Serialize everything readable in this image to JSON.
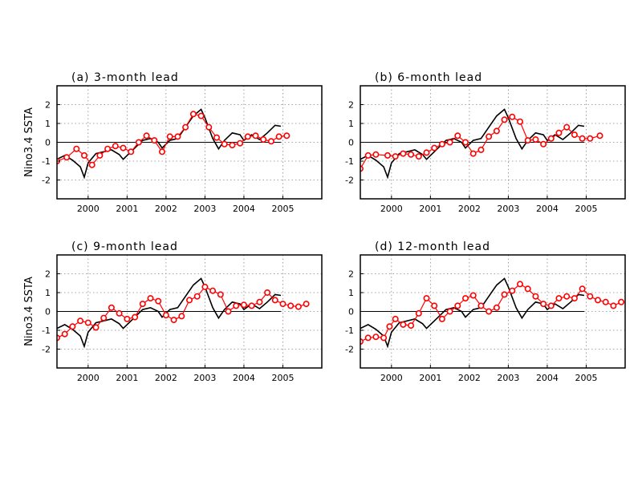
{
  "chart_data": [
    {
      "type": "line",
      "title": "(a) 3-month lead",
      "ylabel": "Nino3.4 SSTA",
      "xlim": [
        1999.2,
        2006.0
      ],
      "ylim": [
        -3,
        3
      ],
      "xticks": [
        2000,
        2001,
        2002,
        2003,
        2004,
        2005
      ],
      "xtick_labels": [
        "2000",
        "2001",
        "2002",
        "2003",
        "2004",
        "2005"
      ],
      "yticks": [
        -2,
        -1,
        0,
        1,
        2
      ],
      "ytick_labels": [
        "-2",
        "-1",
        "0",
        "1",
        "2"
      ],
      "grid": true,
      "zero_line": true,
      "series": [
        {
          "style": "line",
          "color": "#000000",
          "x": [
            1999.2,
            1999.4,
            1999.6,
            1999.8,
            1999.9,
            2000.0,
            2000.2,
            2000.4,
            2000.6,
            2000.8,
            2000.9,
            2001.0,
            2001.2,
            2001.4,
            2001.6,
            2001.8,
            2001.9,
            2002.1,
            2002.3,
            2002.5,
            2002.7,
            2002.9,
            2003.0,
            2003.2,
            2003.35,
            2003.5,
            2003.7,
            2003.9,
            2004.0,
            2004.2,
            2004.4,
            2004.6,
            2004.8,
            2004.95
          ],
          "y": [
            -0.9,
            -0.7,
            -0.95,
            -1.3,
            -1.85,
            -1.1,
            -0.6,
            -0.5,
            -0.4,
            -0.65,
            -0.9,
            -0.7,
            -0.3,
            0.1,
            0.2,
            0.0,
            -0.3,
            0.1,
            0.2,
            0.8,
            1.4,
            1.75,
            1.3,
            0.2,
            -0.35,
            0.1,
            0.5,
            0.4,
            0.1,
            0.4,
            0.15,
            0.5,
            0.9,
            0.85
          ]
        },
        {
          "style": "markers",
          "color": "#ff0000",
          "x": [
            1999.2,
            1999.45,
            1999.7,
            1999.9,
            2000.1,
            2000.3,
            2000.5,
            2000.7,
            2000.9,
            2001.1,
            2001.3,
            2001.5,
            2001.7,
            2001.9,
            2002.1,
            2002.3,
            2002.5,
            2002.7,
            2002.9,
            2003.1,
            2003.3,
            2003.5,
            2003.7,
            2003.9,
            2004.1,
            2004.3,
            2004.5,
            2004.7,
            2004.9,
            2005.1
          ],
          "y": [
            -1.0,
            -0.8,
            -0.35,
            -0.7,
            -1.2,
            -0.7,
            -0.35,
            -0.2,
            -0.3,
            -0.5,
            0.0,
            0.35,
            0.1,
            -0.5,
            0.3,
            0.3,
            0.8,
            1.5,
            1.4,
            0.8,
            0.25,
            -0.1,
            -0.15,
            -0.05,
            0.3,
            0.35,
            0.15,
            0.05,
            0.3,
            0.35
          ]
        }
      ]
    },
    {
      "type": "line",
      "title": "(b) 6-month lead",
      "xlim": [
        1999.2,
        2006.0
      ],
      "ylim": [
        -3,
        3
      ],
      "xticks": [
        2000,
        2001,
        2002,
        2003,
        2004,
        2005
      ],
      "xtick_labels": [
        "2000",
        "2001",
        "2002",
        "2003",
        "2004",
        "2005"
      ],
      "yticks": [
        -2,
        -1,
        0,
        1,
        2
      ],
      "ytick_labels": [
        "-2",
        "-1",
        "0",
        "1",
        "2"
      ],
      "grid": true,
      "zero_line": true,
      "series": [
        {
          "style": "line",
          "color": "#000000",
          "x": [
            1999.2,
            1999.4,
            1999.6,
            1999.8,
            1999.9,
            2000.0,
            2000.2,
            2000.4,
            2000.6,
            2000.8,
            2000.9,
            2001.0,
            2001.2,
            2001.4,
            2001.6,
            2001.8,
            2001.9,
            2002.1,
            2002.3,
            2002.5,
            2002.7,
            2002.9,
            2003.0,
            2003.2,
            2003.35,
            2003.5,
            2003.7,
            2003.9,
            2004.0,
            2004.2,
            2004.4,
            2004.6,
            2004.8,
            2004.95
          ],
          "y": [
            -0.9,
            -0.7,
            -0.95,
            -1.3,
            -1.85,
            -1.1,
            -0.6,
            -0.5,
            -0.4,
            -0.65,
            -0.9,
            -0.7,
            -0.3,
            0.1,
            0.2,
            0.0,
            -0.3,
            0.1,
            0.2,
            0.8,
            1.4,
            1.75,
            1.3,
            0.2,
            -0.35,
            0.1,
            0.5,
            0.4,
            0.1,
            0.4,
            0.15,
            0.5,
            0.9,
            0.85
          ]
        },
        {
          "style": "markers",
          "color": "#ff0000",
          "x": [
            1999.2,
            1999.4,
            1999.6,
            1999.9,
            2000.1,
            2000.3,
            2000.5,
            2000.7,
            2000.9,
            2001.1,
            2001.3,
            2001.5,
            2001.7,
            2001.9,
            2002.1,
            2002.3,
            2002.5,
            2002.7,
            2002.9,
            2003.1,
            2003.3,
            2003.5,
            2003.7,
            2003.9,
            2004.1,
            2004.3,
            2004.5,
            2004.7,
            2004.9,
            2005.1,
            2005.35
          ],
          "y": [
            -1.4,
            -0.7,
            -0.65,
            -0.7,
            -0.75,
            -0.6,
            -0.65,
            -0.75,
            -0.55,
            -0.3,
            -0.1,
            0.0,
            0.35,
            0.0,
            -0.6,
            -0.4,
            0.3,
            0.6,
            1.2,
            1.35,
            1.1,
            0.1,
            0.15,
            -0.1,
            0.2,
            0.5,
            0.8,
            0.4,
            0.2,
            0.2,
            0.35
          ]
        }
      ]
    },
    {
      "type": "line",
      "title": "(c) 9-month lead",
      "ylabel": "Nino3.4 SSTA",
      "xlim": [
        1999.2,
        2006.0
      ],
      "ylim": [
        -3,
        3
      ],
      "xticks": [
        2000,
        2001,
        2002,
        2003,
        2004,
        2005
      ],
      "xtick_labels": [
        "2000",
        "2001",
        "2002",
        "2003",
        "2004",
        "2005"
      ],
      "yticks": [
        -2,
        -1,
        0,
        1,
        2
      ],
      "ytick_labels": [
        "-2",
        "-1",
        "0",
        "1",
        "2"
      ],
      "grid": true,
      "zero_line": true,
      "series": [
        {
          "style": "line",
          "color": "#000000",
          "x": [
            1999.2,
            1999.4,
            1999.6,
            1999.8,
            1999.9,
            2000.0,
            2000.2,
            2000.4,
            2000.6,
            2000.8,
            2000.9,
            2001.0,
            2001.2,
            2001.4,
            2001.6,
            2001.8,
            2001.9,
            2002.1,
            2002.3,
            2002.5,
            2002.7,
            2002.9,
            2003.0,
            2003.2,
            2003.35,
            2003.5,
            2003.7,
            2003.9,
            2004.0,
            2004.2,
            2004.4,
            2004.6,
            2004.8,
            2004.95
          ],
          "y": [
            -0.9,
            -0.7,
            -0.95,
            -1.3,
            -1.85,
            -1.1,
            -0.6,
            -0.5,
            -0.4,
            -0.65,
            -0.9,
            -0.7,
            -0.3,
            0.1,
            0.2,
            0.0,
            -0.3,
            0.1,
            0.2,
            0.8,
            1.4,
            1.75,
            1.3,
            0.2,
            -0.35,
            0.1,
            0.5,
            0.4,
            0.1,
            0.4,
            0.15,
            0.5,
            0.9,
            0.85
          ]
        },
        {
          "style": "markers",
          "color": "#ff0000",
          "x": [
            1999.2,
            1999.4,
            1999.6,
            1999.8,
            2000.0,
            2000.2,
            2000.4,
            2000.6,
            2000.8,
            2001.0,
            2001.2,
            2001.4,
            2001.6,
            2001.8,
            2002.0,
            2002.2,
            2002.4,
            2002.6,
            2002.8,
            2003.0,
            2003.2,
            2003.4,
            2003.6,
            2003.8,
            2004.0,
            2004.2,
            2004.4,
            2004.6,
            2004.8,
            2005.0,
            2005.2,
            2005.4,
            2005.6
          ],
          "y": [
            -1.4,
            -1.2,
            -0.8,
            -0.5,
            -0.6,
            -0.85,
            -0.35,
            0.2,
            -0.1,
            -0.4,
            -0.3,
            0.4,
            0.7,
            0.55,
            -0.2,
            -0.45,
            -0.25,
            0.6,
            0.8,
            1.3,
            1.1,
            0.9,
            0.0,
            0.3,
            0.35,
            0.3,
            0.5,
            1.0,
            0.6,
            0.4,
            0.3,
            0.25,
            0.4
          ]
        }
      ]
    },
    {
      "type": "line",
      "title": "(d) 12-month lead",
      "xlim": [
        1999.2,
        2006.0
      ],
      "ylim": [
        -3,
        3
      ],
      "xticks": [
        2000,
        2001,
        2002,
        2003,
        2004,
        2005
      ],
      "xtick_labels": [
        "2000",
        "2001",
        "2002",
        "2003",
        "2004",
        "2005"
      ],
      "yticks": [
        -2,
        -1,
        0,
        1,
        2
      ],
      "ytick_labels": [
        "-2",
        "-1",
        "0",
        "1",
        "2"
      ],
      "grid": true,
      "zero_line": true,
      "series": [
        {
          "style": "line",
          "color": "#000000",
          "x": [
            1999.2,
            1999.4,
            1999.6,
            1999.8,
            1999.9,
            2000.0,
            2000.2,
            2000.4,
            2000.6,
            2000.8,
            2000.9,
            2001.0,
            2001.2,
            2001.4,
            2001.6,
            2001.8,
            2001.9,
            2002.1,
            2002.3,
            2002.5,
            2002.7,
            2002.9,
            2003.0,
            2003.2,
            2003.35,
            2003.5,
            2003.7,
            2003.9,
            2004.0,
            2004.2,
            2004.4,
            2004.6,
            2004.8,
            2004.95
          ],
          "y": [
            -0.9,
            -0.7,
            -0.95,
            -1.3,
            -1.85,
            -1.1,
            -0.6,
            -0.5,
            -0.4,
            -0.65,
            -0.9,
            -0.7,
            -0.3,
            0.1,
            0.2,
            0.0,
            -0.3,
            0.1,
            0.2,
            0.8,
            1.4,
            1.75,
            1.3,
            0.2,
            -0.35,
            0.1,
            0.5,
            0.4,
            0.1,
            0.4,
            0.15,
            0.5,
            0.9,
            0.85
          ]
        },
        {
          "style": "markers",
          "color": "#ff0000",
          "x": [
            1999.2,
            1999.4,
            1999.6,
            1999.8,
            1999.95,
            2000.1,
            2000.3,
            2000.5,
            2000.7,
            2000.9,
            2001.1,
            2001.3,
            2001.5,
            2001.7,
            2001.9,
            2002.1,
            2002.3,
            2002.5,
            2002.7,
            2002.9,
            2003.1,
            2003.3,
            2003.5,
            2003.7,
            2003.9,
            2004.1,
            2004.3,
            2004.5,
            2004.7,
            2004.9,
            2005.1,
            2005.3,
            2005.5,
            2005.7,
            2005.9
          ],
          "y": [
            -1.6,
            -1.4,
            -1.35,
            -1.4,
            -0.8,
            -0.4,
            -0.7,
            -0.75,
            -0.1,
            0.7,
            0.3,
            -0.4,
            0.0,
            0.3,
            0.7,
            0.85,
            0.3,
            0.0,
            0.2,
            0.9,
            1.1,
            1.45,
            1.2,
            0.8,
            0.4,
            0.3,
            0.7,
            0.8,
            0.7,
            1.2,
            0.8,
            0.6,
            0.5,
            0.3,
            0.5
          ]
        }
      ]
    }
  ]
}
